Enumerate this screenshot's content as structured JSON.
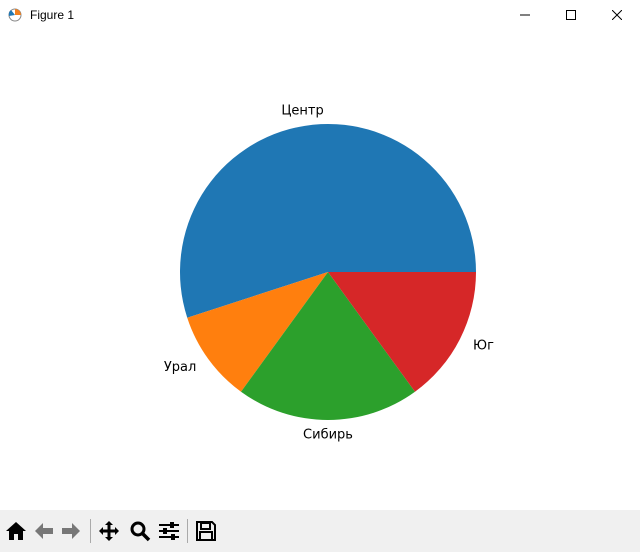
{
  "window": {
    "title": "Figure 1"
  },
  "toolbar": {
    "buttons": [
      "home",
      "back",
      "forward",
      "pan",
      "zoom",
      "configure-subplots",
      "save"
    ]
  },
  "chart_data": {
    "type": "pie",
    "categories": [
      "Центр",
      "Урал",
      "Сибирь",
      "Юг"
    ],
    "values": [
      55,
      10,
      20,
      15
    ],
    "colors": [
      "#1f77b4",
      "#ff7f0e",
      "#2ca02c",
      "#d62728"
    ],
    "startangle": 0,
    "direction": "counterclockwise"
  }
}
